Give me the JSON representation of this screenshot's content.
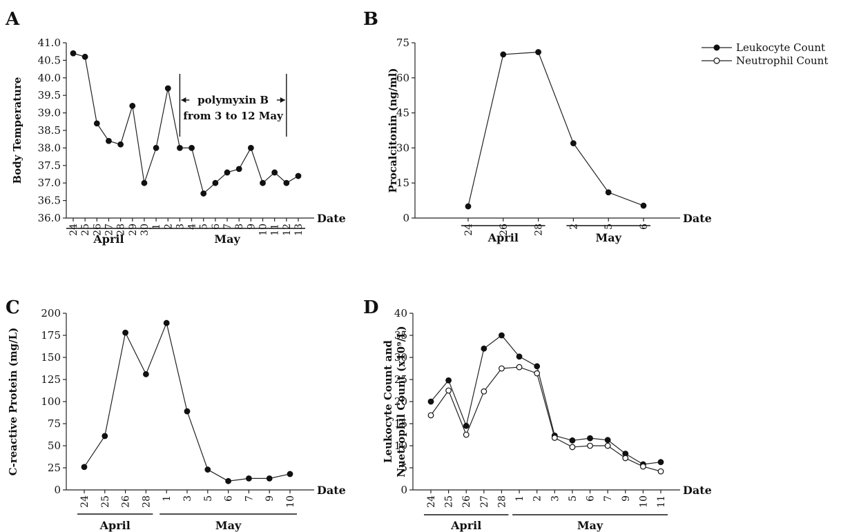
{
  "legend": {
    "items": [
      {
        "label": "Leukocyte Count",
        "marker": "filled"
      },
      {
        "label": "Neutrophil Count",
        "marker": "open"
      }
    ]
  },
  "chart_data": [
    {
      "panel": "A",
      "type": "line",
      "title": "",
      "ylabel": "Body Temperature",
      "xlabel": "Date",
      "ylim": [
        36.0,
        41.0
      ],
      "yticks": [
        "36.0",
        "36.5",
        "37.0",
        "37.5",
        "38.0",
        "38.5",
        "39.0",
        "39.5",
        "40.0",
        "40.5",
        "41.0"
      ],
      "categories": [
        "24",
        "25",
        "26",
        "27",
        "28",
        "29",
        "30",
        "1",
        "2",
        "3",
        "4",
        "5",
        "6",
        "7",
        "8",
        "9",
        "10",
        "11",
        "12",
        "13"
      ],
      "months": [
        {
          "label": "April",
          "from": 0,
          "to": 6
        },
        {
          "label": "May",
          "from": 7,
          "to": 19
        }
      ],
      "series": [
        {
          "marker": "filled",
          "values": [
            40.7,
            40.6,
            38.7,
            38.2,
            38.1,
            39.2,
            37.0,
            38.0,
            39.7,
            38.0,
            38.0,
            36.7,
            37.0,
            37.3,
            37.4,
            38.0,
            37.0,
            37.3,
            37.0,
            37.2
          ]
        }
      ],
      "annotation": {
        "line1": "polymyxin B",
        "line2": "from 3 to 12 May",
        "from": "3",
        "to": "12"
      }
    },
    {
      "panel": "B",
      "type": "line",
      "title": "",
      "ylabel": "Procalcitonin (ng/ml)",
      "xlabel": "Date",
      "ylim": [
        0,
        75
      ],
      "yticks": [
        "0",
        "15",
        "30",
        "45",
        "60",
        "75"
      ],
      "categories": [
        "24",
        "26",
        "28",
        "2",
        "5",
        "6"
      ],
      "months": [
        {
          "label": "April",
          "from": 0,
          "to": 2
        },
        {
          "label": "May",
          "from": 3,
          "to": 5
        }
      ],
      "series": [
        {
          "marker": "filled",
          "values": [
            5,
            70,
            71,
            32,
            11,
            5.3
          ]
        }
      ]
    },
    {
      "panel": "C",
      "type": "line",
      "title": "",
      "ylabel": "C-reactive Protein (mg/L)",
      "xlabel": "Date",
      "ylim": [
        0,
        200
      ],
      "yticks": [
        "0",
        "25",
        "50",
        "75",
        "100",
        "125",
        "150",
        "175",
        "200"
      ],
      "categories": [
        "24",
        "25",
        "26",
        "28",
        "1",
        "3",
        "5",
        "6",
        "7",
        "9",
        "10"
      ],
      "months": [
        {
          "label": "April",
          "from": 0,
          "to": 3
        },
        {
          "label": "May",
          "from": 4,
          "to": 10
        }
      ],
      "series": [
        {
          "marker": "filled",
          "values": [
            26,
            61,
            178,
            131,
            189,
            89,
            23,
            10,
            13,
            13,
            18
          ]
        }
      ]
    },
    {
      "panel": "D",
      "type": "line",
      "title": "",
      "ylabel_line1": "Leukocyte Count and",
      "ylabel_line2": "Nuetrophil Count (x10⁹/L)",
      "xlabel": "Date",
      "ylim": [
        0,
        40
      ],
      "yticks": [
        "0",
        "5",
        "10",
        "15",
        "20",
        "25",
        "30",
        "35",
        "40"
      ],
      "categories": [
        "24",
        "25",
        "26",
        "27",
        "28",
        "1",
        "2",
        "3",
        "5",
        "6",
        "7",
        "9",
        "10",
        "11"
      ],
      "months": [
        {
          "label": "April",
          "from": 0,
          "to": 4
        },
        {
          "label": "May",
          "from": 5,
          "to": 13
        }
      ],
      "series": [
        {
          "name": "Leukocyte Count",
          "marker": "filled",
          "values": [
            20,
            24.8,
            14.5,
            32,
            35,
            30.2,
            28,
            12.3,
            11.2,
            11.7,
            11.3,
            8.2,
            5.8,
            6.3
          ]
        },
        {
          "name": "Neutrophil Count",
          "marker": "open",
          "values": [
            16.9,
            22.5,
            12.5,
            22.3,
            27.5,
            27.8,
            26.4,
            11.8,
            9.7,
            10,
            10,
            7.2,
            5.3,
            4.2
          ]
        }
      ]
    }
  ]
}
